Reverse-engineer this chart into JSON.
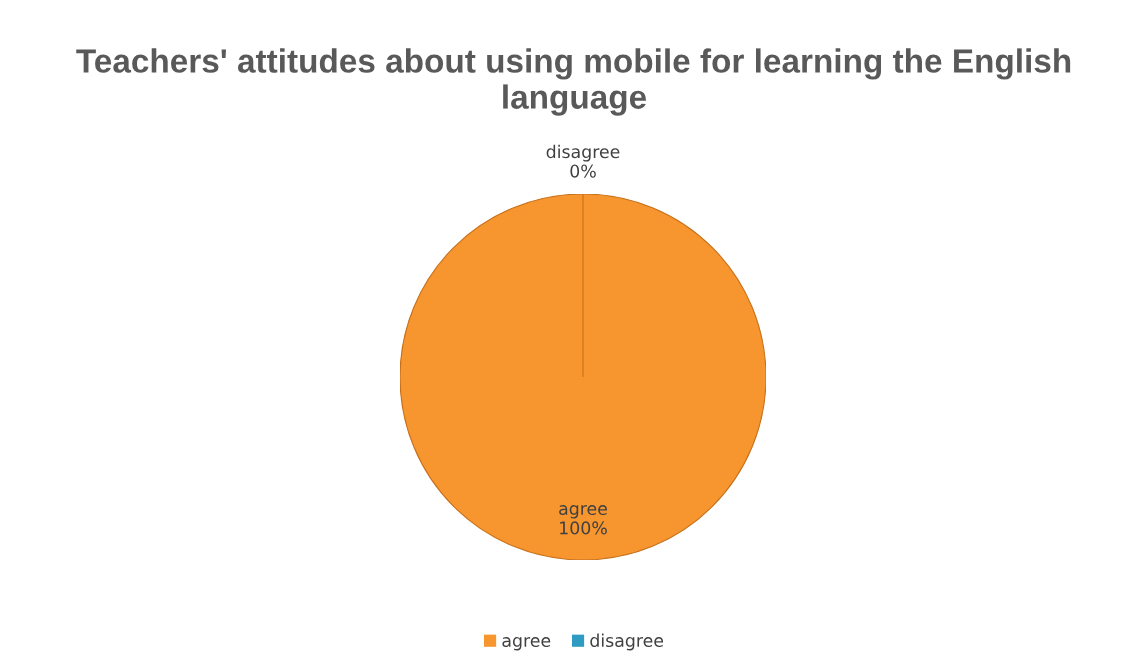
{
  "chart_data": {
    "type": "pie",
    "title": "Teachers' attitudes about using mobile for learning the English language",
    "categories": [
      "agree",
      "disagree"
    ],
    "values": [
      100,
      0
    ],
    "colors": [
      "#f7962f",
      "#2e9cc2"
    ],
    "value_labels": [
      "100%",
      "0%"
    ],
    "legend": "bottom"
  }
}
